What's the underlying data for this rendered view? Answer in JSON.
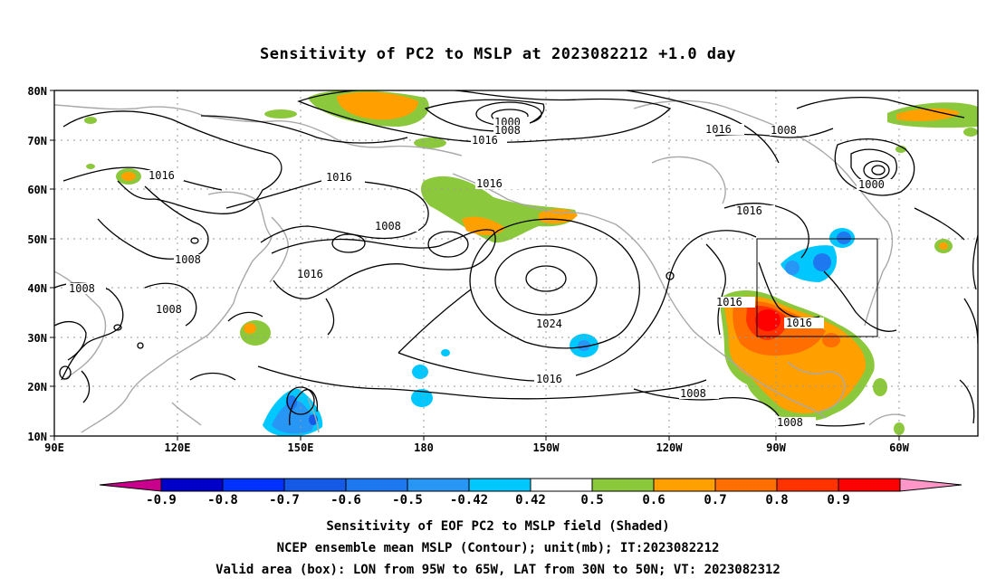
{
  "title": "Sensitivity of PC2 to MSLP at 2023082212 +1.0 day",
  "map": {
    "lat_labels": [
      "80N",
      "70N",
      "60N",
      "50N",
      "40N",
      "30N",
      "20N",
      "10N"
    ],
    "lon_labels": [
      "90E",
      "120E",
      "150E",
      "180",
      "150W",
      "120W",
      "90W",
      "60W"
    ],
    "contour_labels": {
      "c1000a": "1000",
      "c1008a": "1008",
      "c1016a": "1016",
      "c1016b": "1016",
      "c1008b": "1008",
      "c1016c": "1016",
      "c1000b": "1000",
      "c1016d": "1016",
      "c1008c": "1008",
      "c1016e": "1016",
      "c1008d": "1008",
      "c1016f": "1016",
      "c1008e": "1008",
      "c1008f": "1008",
      "c1016g": "1016",
      "c1024": "1024",
      "c1016h": "1016",
      "c1008g": "1008",
      "c1016i": "1016",
      "c1008h": "1008"
    },
    "box_area": {
      "lon_from": "95W",
      "lon_to": "65W",
      "lat_from": "30N",
      "lat_to": "50N"
    }
  },
  "colorbar": {
    "labels": [
      "-0.9",
      "-0.8",
      "-0.7",
      "-0.6",
      "-0.5",
      "-0.42",
      "0.42",
      "0.5",
      "0.6",
      "0.7",
      "0.8",
      "0.9"
    ],
    "colors": [
      "#c8008c",
      "#0000c8",
      "#0032ff",
      "#145ae6",
      "#1e78f0",
      "#2896f5",
      "#00c8ff",
      "#ffffff",
      "#8cc83c",
      "#ffa000",
      "#ff6e00",
      "#ff3200",
      "#ff0000",
      "#ff96c8"
    ]
  },
  "captions": {
    "line1": "Sensitivity of EOF PC2 to MSLP field (Shaded)",
    "line2": "NCEP ensemble mean MSLP (Contour); unit(mb); IT:2023082212",
    "line3": "Valid area (box): LON from 95W to 65W, LAT from 30N to 50N; VT: 2023082312"
  }
}
